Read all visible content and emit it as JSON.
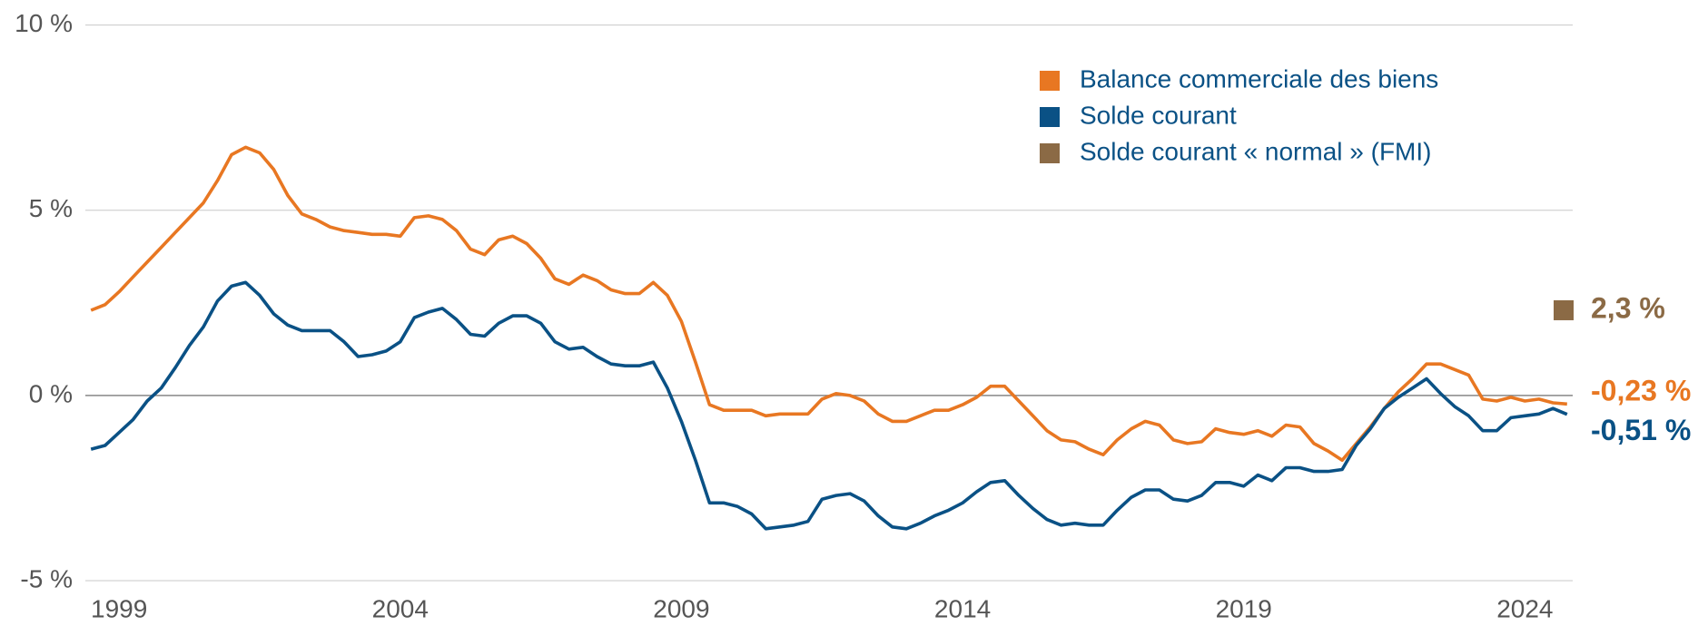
{
  "chart_data": {
    "type": "line",
    "x": [
      1998.5,
      1998.75,
      1999,
      1999.25,
      1999.5,
      1999.75,
      2000,
      2000.25,
      2000.5,
      2000.75,
      2001,
      2001.25,
      2001.5,
      2001.75,
      2002,
      2002.25,
      2002.5,
      2002.75,
      2003,
      2003.25,
      2003.5,
      2003.75,
      2004,
      2004.25,
      2004.5,
      2004.75,
      2005,
      2005.25,
      2005.5,
      2005.75,
      2006,
      2006.25,
      2006.5,
      2006.75,
      2007,
      2007.25,
      2007.5,
      2007.75,
      2008,
      2008.25,
      2008.5,
      2008.75,
      2009,
      2009.25,
      2009.5,
      2009.75,
      2010,
      2010.25,
      2010.5,
      2010.75,
      2011,
      2011.25,
      2011.5,
      2011.75,
      2012,
      2012.25,
      2012.5,
      2012.75,
      2013,
      2013.25,
      2013.5,
      2013.75,
      2014,
      2014.25,
      2014.5,
      2014.75,
      2015,
      2015.25,
      2015.5,
      2015.75,
      2016,
      2016.25,
      2016.5,
      2016.75,
      2017,
      2017.25,
      2017.5,
      2017.75,
      2018,
      2018.25,
      2018.5,
      2018.75,
      2019,
      2019.25,
      2019.5,
      2019.75,
      2020,
      2020.25,
      2020.5,
      2020.75,
      2021,
      2021.25,
      2021.5,
      2021.75,
      2022,
      2022.25,
      2022.5,
      2022.75,
      2023,
      2023.25,
      2023.5,
      2023.75,
      2024,
      2024.25,
      2024.5,
      2024.75
    ],
    "series": [
      {
        "name": "Balance commerciale des biens",
        "color": "#e87722",
        "last_label": "-0,23 %",
        "values": [
          2.3,
          2.45,
          2.8,
          3.2,
          3.6,
          4.0,
          4.4,
          4.8,
          5.2,
          5.8,
          6.5,
          6.7,
          6.55,
          6.1,
          5.4,
          4.9,
          4.75,
          4.55,
          4.45,
          4.4,
          4.35,
          4.35,
          4.3,
          4.8,
          4.85,
          4.75,
          4.45,
          3.95,
          3.8,
          4.2,
          4.3,
          4.1,
          3.7,
          3.15,
          3.0,
          3.25,
          3.1,
          2.85,
          2.75,
          2.75,
          3.05,
          2.7,
          2.0,
          0.9,
          -0.25,
          -0.4,
          -0.4,
          -0.4,
          -0.55,
          -0.5,
          -0.5,
          -0.5,
          -0.1,
          0.05,
          0.0,
          -0.15,
          -0.5,
          -0.7,
          -0.7,
          -0.55,
          -0.4,
          -0.4,
          -0.25,
          -0.05,
          0.25,
          0.25,
          -0.15,
          -0.55,
          -0.95,
          -1.2,
          -1.25,
          -1.45,
          -1.6,
          -1.2,
          -0.9,
          -0.7,
          -0.8,
          -1.2,
          -1.3,
          -1.25,
          -0.9,
          -1.0,
          -1.05,
          -0.95,
          -1.1,
          -0.8,
          -0.85,
          -1.3,
          -1.5,
          -1.75,
          -1.3,
          -0.85,
          -0.35,
          0.1,
          0.45,
          0.85,
          0.85,
          0.7,
          0.55,
          -0.1,
          -0.15,
          -0.05,
          -0.15,
          -0.1,
          -0.2,
          -0.23
        ]
      },
      {
        "name": "Solde courant",
        "color": "#0a5185",
        "last_label": "-0,51 %",
        "values": [
          -1.45,
          -1.35,
          -1.0,
          -0.65,
          -0.15,
          0.2,
          0.75,
          1.35,
          1.85,
          2.55,
          2.95,
          3.05,
          2.7,
          2.2,
          1.9,
          1.75,
          1.75,
          1.75,
          1.45,
          1.05,
          1.1,
          1.2,
          1.45,
          2.1,
          2.25,
          2.35,
          2.05,
          1.65,
          1.6,
          1.95,
          2.15,
          2.15,
          1.95,
          1.45,
          1.25,
          1.3,
          1.05,
          0.85,
          0.8,
          0.8,
          0.9,
          0.2,
          -0.7,
          -1.75,
          -2.9,
          -2.9,
          -3.0,
          -3.2,
          -3.6,
          -3.55,
          -3.5,
          -3.4,
          -2.8,
          -2.7,
          -2.65,
          -2.85,
          -3.25,
          -3.55,
          -3.6,
          -3.45,
          -3.25,
          -3.1,
          -2.9,
          -2.6,
          -2.35,
          -2.3,
          -2.7,
          -3.05,
          -3.35,
          -3.5,
          -3.45,
          -3.5,
          -3.5,
          -3.1,
          -2.75,
          -2.55,
          -2.55,
          -2.8,
          -2.85,
          -2.7,
          -2.35,
          -2.35,
          -2.45,
          -2.15,
          -2.3,
          -1.95,
          -1.95,
          -2.05,
          -2.05,
          -2.0,
          -1.35,
          -0.9,
          -0.35,
          -0.05,
          0.2,
          0.45,
          0.05,
          -0.3,
          -0.55,
          -0.95,
          -0.95,
          -0.6,
          -0.55,
          -0.5,
          -0.35,
          -0.51
        ]
      }
    ],
    "reference": {
      "name": "Solde courant « normal » (FMI)",
      "color": "#8b6a45",
      "value": 2.3,
      "value_label": "2,3 %"
    },
    "xlim": [
      1998.4,
      2024.85
    ],
    "xticks": [
      1999,
      2004,
      2009,
      2014,
      2019,
      2024
    ],
    "ylim": [
      -5,
      10
    ],
    "yticks": [
      {
        "value": -5,
        "label": "-5 %"
      },
      {
        "value": 0,
        "label": "0 %"
      },
      {
        "value": 5,
        "label": "5 %"
      },
      {
        "value": 10,
        "label": "10 %"
      }
    ],
    "grid": true
  }
}
